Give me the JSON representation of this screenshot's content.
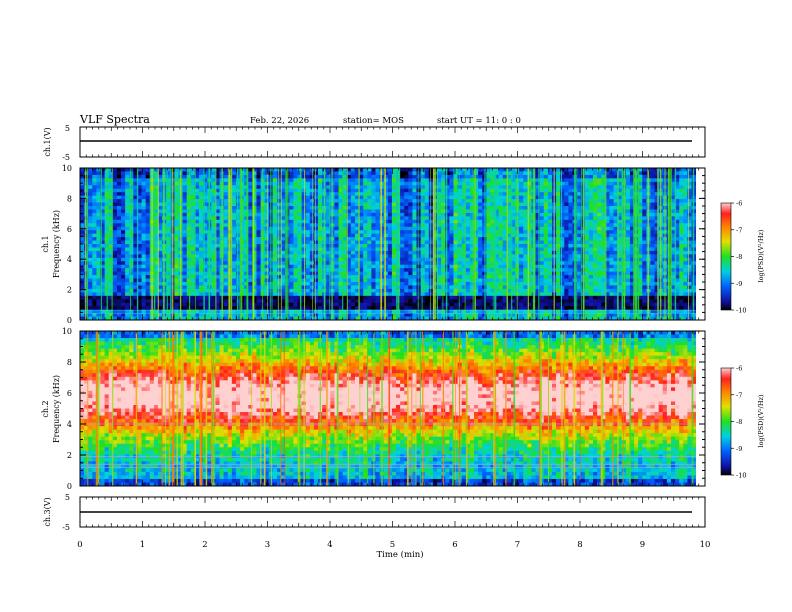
{
  "header": {
    "title": "VLF Spectra",
    "date": "Feb. 22, 2026",
    "station": "station= MOS",
    "start_ut": "start  UT =   11: 0  : 0"
  },
  "chart_data": [
    {
      "id": "ch1-waveform",
      "type": "line",
      "ylabel": "ch.1(V)",
      "ylim": [
        -5,
        5
      ],
      "yticks": [
        "5",
        "-5"
      ],
      "xlim": [
        0,
        10
      ],
      "series": [
        {
          "name": "ch.1 voltage",
          "x": [
            0,
            9.85
          ],
          "y": [
            0,
            0
          ]
        }
      ]
    },
    {
      "id": "ch1-spectrogram",
      "type": "heatmap",
      "ylabel_line1": "ch.1",
      "ylabel_line2": "Frequency (kHz)",
      "ylim": [
        0,
        10
      ],
      "yticks": [
        "0",
        "2",
        "4",
        "6",
        "8",
        "10"
      ],
      "xlim": [
        0,
        10
      ],
      "data_xmax": 9.85,
      "colorbar": {
        "label": "log(PSD)(V²/Hz)",
        "range": [
          -10,
          -6
        ],
        "ticks": [
          "-6",
          "-7",
          "-8",
          "-9",
          "-10"
        ]
      },
      "description_levels": "mostly -9 to -8 broadband spikes, dark below 1.5 kHz band, persistent line near 0.6 kHz"
    },
    {
      "id": "ch2-spectrogram",
      "type": "heatmap",
      "ylabel_line1": "ch.2",
      "ylabel_line2": "Frequency (kHz)",
      "ylim": [
        0,
        10
      ],
      "yticks": [
        "0",
        "2",
        "4",
        "6",
        "8",
        "10"
      ],
      "xlim": [
        0,
        10
      ],
      "data_xmax": 9.85,
      "colorbar": {
        "label": "log(PSD)(V²/Hz)",
        "range": [
          -10,
          -6
        ],
        "ticks": [
          "-6",
          "-7",
          "-8",
          "-9",
          "-10"
        ]
      },
      "description_levels": "strong -7 to -6 between 3 and 9 kHz, weaker near 0 and 10 kHz"
    },
    {
      "id": "ch3-waveform",
      "type": "line",
      "ylabel": "ch.3(V)",
      "ylim": [
        -5,
        5
      ],
      "yticks": [
        "5",
        "-5"
      ],
      "xlim": [
        0,
        10
      ],
      "xlabel": "Time (min)",
      "xticks": [
        "0",
        "1",
        "2",
        "3",
        "4",
        "5",
        "6",
        "7",
        "8",
        "9",
        "10"
      ],
      "series": [
        {
          "name": "ch.3 voltage",
          "x": [
            0,
            9.85
          ],
          "y": [
            0,
            0
          ]
        }
      ]
    }
  ]
}
